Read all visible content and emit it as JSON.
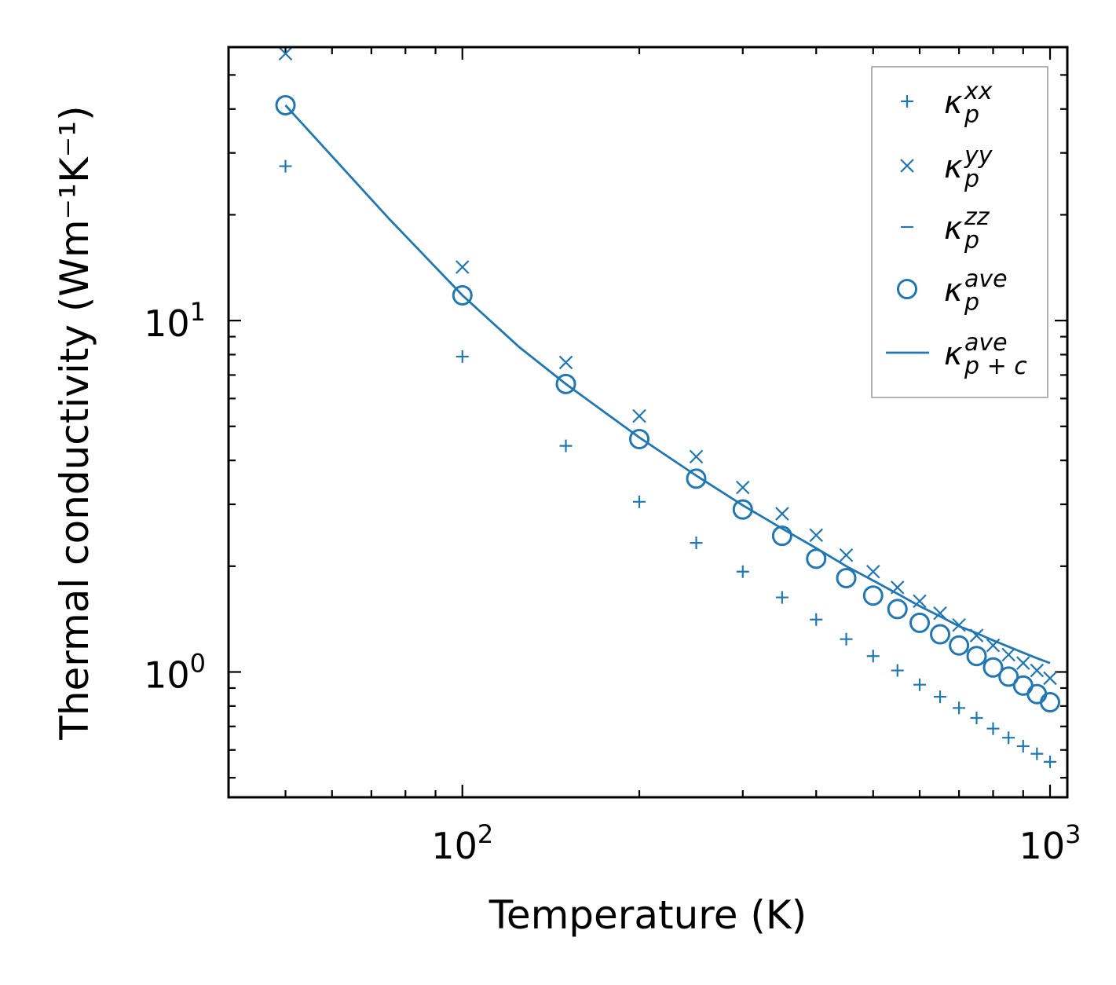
{
  "chart_data": {
    "type": "scatter",
    "title": "",
    "xlabel": "Temperature (K)",
    "ylabel": "Thermal conductivity (Wm⁻¹K⁻¹)",
    "xscale": "log",
    "yscale": "log",
    "xlim": [
      40,
      1070
    ],
    "ylim": [
      0.44,
      60
    ],
    "x_ticks": [
      {
        "value": 100,
        "base": "10",
        "exp": "2"
      },
      {
        "value": 1000,
        "base": "10",
        "exp": "3"
      }
    ],
    "y_ticks": [
      {
        "value": 1,
        "base": "10",
        "exp": "0"
      },
      {
        "value": 10,
        "base": "10",
        "exp": "1"
      }
    ],
    "legend_position": "top-right",
    "color": "#1f77b4",
    "series": [
      {
        "name": "kappa_p^xx",
        "legend": {
          "symbol": "κ",
          "sub": "p",
          "sup": "xx"
        },
        "marker": "plus",
        "x": [
          50,
          100,
          150,
          200,
          250,
          300,
          350,
          400,
          450,
          500,
          550,
          600,
          650,
          700,
          750,
          800,
          850,
          900,
          950,
          1000
        ],
        "y": [
          27.5,
          7.9,
          4.4,
          3.05,
          2.33,
          1.93,
          1.63,
          1.41,
          1.24,
          1.11,
          1.01,
          0.92,
          0.85,
          0.79,
          0.74,
          0.69,
          0.65,
          0.615,
          0.585,
          0.555
        ]
      },
      {
        "name": "kappa_p^yy",
        "legend": {
          "symbol": "κ",
          "sub": "p",
          "sup": "yy"
        },
        "marker": "x",
        "x": [
          50,
          100,
          150,
          200,
          250,
          300,
          350,
          400,
          450,
          500,
          550,
          600,
          650,
          700,
          750,
          800,
          850,
          900,
          950,
          1000
        ],
        "y": [
          57.5,
          14.2,
          7.6,
          5.35,
          4.1,
          3.35,
          2.82,
          2.45,
          2.15,
          1.93,
          1.74,
          1.59,
          1.47,
          1.36,
          1.27,
          1.19,
          1.12,
          1.06,
          1.01,
          0.96
        ]
      },
      {
        "name": "kappa_p^zz",
        "legend": {
          "symbol": "κ",
          "sub": "p",
          "sup": "zz"
        },
        "marker": "hline",
        "x": [],
        "y": []
      },
      {
        "name": "kappa_p^ave",
        "legend": {
          "symbol": "κ",
          "sub": "p",
          "sup": "ave"
        },
        "marker": "circle",
        "x": [
          50,
          100,
          150,
          200,
          250,
          300,
          350,
          400,
          450,
          500,
          550,
          600,
          650,
          700,
          750,
          800,
          850,
          900,
          950,
          1000
        ],
        "y": [
          41,
          11.8,
          6.6,
          4.6,
          3.55,
          2.9,
          2.44,
          2.1,
          1.85,
          1.65,
          1.51,
          1.38,
          1.28,
          1.19,
          1.11,
          1.03,
          0.97,
          0.915,
          0.865,
          0.82
        ]
      },
      {
        "name": "kappa_p+c^ave",
        "legend": {
          "symbol": "κ",
          "sub": "p + c",
          "sup": "ave"
        },
        "marker": "line",
        "x": [
          50,
          75,
          100,
          125,
          150,
          200,
          250,
          300,
          350,
          400,
          450,
          500,
          550,
          600,
          650,
          700,
          750,
          800,
          850,
          900,
          950,
          1000
        ],
        "y": [
          41,
          19.5,
          11.8,
          8.4,
          6.6,
          4.65,
          3.62,
          2.98,
          2.56,
          2.25,
          2.0,
          1.82,
          1.67,
          1.54,
          1.44,
          1.35,
          1.29,
          1.23,
          1.18,
          1.135,
          1.095,
          1.06
        ]
      }
    ]
  }
}
